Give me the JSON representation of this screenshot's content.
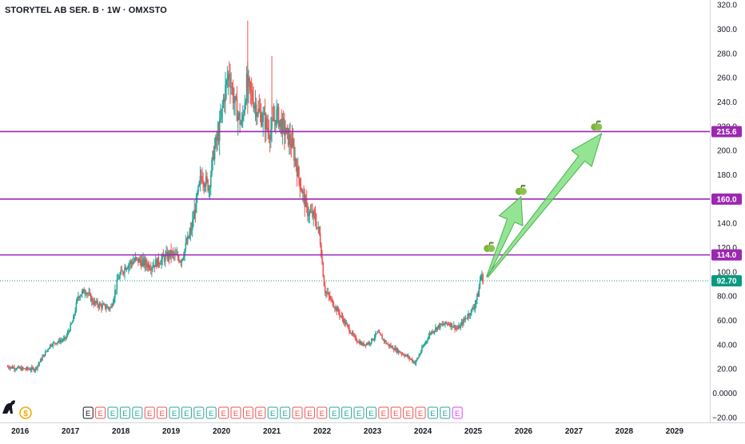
{
  "header": {
    "title": "STORYTEL AB SER. B · 1W · OMXSTO"
  },
  "colors": {
    "up": "#26a69a",
    "down": "#ef5350",
    "level": "#9c27b0",
    "arrow": "#6fdc6f",
    "current": "#089981",
    "grid": "#eef0f3",
    "axis_text": "#131722"
  },
  "icons": {
    "logo": "dinosaur-icon",
    "dividend": "dollar-icon",
    "apple": "apple-icon"
  },
  "chart_data": {
    "type": "candlestick",
    "y_axis": {
      "ticks": [
        "320.0",
        "300.0",
        "280.0",
        "260.0",
        "240.0",
        "220.0",
        "200.0",
        "180.0",
        "160.0",
        "140.0",
        "120.0",
        "100.0",
        "80.00",
        "60.00",
        "40.00",
        "20.00",
        "0.0000",
        "−20.00"
      ],
      "ylim": [
        -24,
        324
      ]
    },
    "x_axis": {
      "ticks": [
        "2016",
        "2017",
        "2018",
        "2019",
        "2020",
        "2021",
        "2022",
        "2023",
        "2024",
        "2025",
        "2026",
        "2027",
        "2028",
        "2029"
      ],
      "xlim": [
        2015.6,
        2029.7
      ]
    },
    "price_path": [
      {
        "x": 2015.75,
        "y": 22
      },
      {
        "x": 2016.05,
        "y": 20
      },
      {
        "x": 2016.3,
        "y": 20
      },
      {
        "x": 2016.45,
        "y": 30
      },
      {
        "x": 2016.6,
        "y": 40
      },
      {
        "x": 2016.9,
        "y": 45
      },
      {
        "x": 2017.05,
        "y": 60
      },
      {
        "x": 2017.15,
        "y": 80
      },
      {
        "x": 2017.3,
        "y": 85
      },
      {
        "x": 2017.45,
        "y": 75
      },
      {
        "x": 2017.6,
        "y": 72
      },
      {
        "x": 2017.8,
        "y": 70
      },
      {
        "x": 2017.95,
        "y": 95
      },
      {
        "x": 2018.1,
        "y": 105
      },
      {
        "x": 2018.3,
        "y": 110
      },
      {
        "x": 2018.6,
        "y": 105
      },
      {
        "x": 2018.8,
        "y": 110
      },
      {
        "x": 2019.0,
        "y": 115
      },
      {
        "x": 2019.2,
        "y": 110
      },
      {
        "x": 2019.4,
        "y": 135
      },
      {
        "x": 2019.6,
        "y": 180
      },
      {
        "x": 2019.75,
        "y": 170
      },
      {
        "x": 2019.85,
        "y": 200
      },
      {
        "x": 2019.95,
        "y": 215
      },
      {
        "x": 2020.05,
        "y": 245
      },
      {
        "x": 2020.15,
        "y": 265
      },
      {
        "x": 2020.25,
        "y": 240
      },
      {
        "x": 2020.4,
        "y": 220
      },
      {
        "x": 2020.5,
        "y": 255
      },
      {
        "x": 2020.6,
        "y": 245
      },
      {
        "x": 2020.75,
        "y": 230
      },
      {
        "x": 2020.85,
        "y": 225
      },
      {
        "x": 2020.95,
        "y": 215
      },
      {
        "x": 2021.1,
        "y": 230
      },
      {
        "x": 2021.2,
        "y": 220
      },
      {
        "x": 2021.4,
        "y": 205
      },
      {
        "x": 2021.55,
        "y": 175
      },
      {
        "x": 2021.7,
        "y": 150
      },
      {
        "x": 2021.85,
        "y": 145
      },
      {
        "x": 2021.95,
        "y": 130
      },
      {
        "x": 2022.05,
        "y": 85
      },
      {
        "x": 2022.2,
        "y": 75
      },
      {
        "x": 2022.35,
        "y": 65
      },
      {
        "x": 2022.5,
        "y": 55
      },
      {
        "x": 2022.65,
        "y": 45
      },
      {
        "x": 2022.8,
        "y": 40
      },
      {
        "x": 2022.95,
        "y": 42
      },
      {
        "x": 2023.1,
        "y": 50
      },
      {
        "x": 2023.3,
        "y": 40
      },
      {
        "x": 2023.5,
        "y": 35
      },
      {
        "x": 2023.7,
        "y": 30
      },
      {
        "x": 2023.85,
        "y": 25
      },
      {
        "x": 2024.0,
        "y": 38
      },
      {
        "x": 2024.15,
        "y": 50
      },
      {
        "x": 2024.3,
        "y": 55
      },
      {
        "x": 2024.5,
        "y": 58
      },
      {
        "x": 2024.7,
        "y": 53
      },
      {
        "x": 2024.85,
        "y": 62
      },
      {
        "x": 2025.0,
        "y": 70
      },
      {
        "x": 2025.1,
        "y": 82
      },
      {
        "x": 2025.15,
        "y": 98
      },
      {
        "x": 2025.2,
        "y": 92.7
      }
    ],
    "levels": [
      {
        "price": 215.6,
        "label": "215.6"
      },
      {
        "price": 160.0,
        "label": "160.0"
      },
      {
        "price": 114.0,
        "label": "114.0"
      }
    ],
    "current_price": {
      "price": 92.7,
      "label": "92.70"
    },
    "arrows": [
      {
        "from": {
          "x": 2025.28,
          "y": 96
        },
        "to": {
          "x": 2025.95,
          "y": 162
        }
      },
      {
        "from": {
          "x": 2025.28,
          "y": 96
        },
        "to": {
          "x": 2027.55,
          "y": 214
        }
      }
    ],
    "markers": [
      {
        "x": 2025.32,
        "y": 120
      },
      {
        "x": 2025.95,
        "y": 167
      },
      {
        "x": 2027.45,
        "y": 220
      }
    ],
    "events": [
      "E",
      "E",
      "E",
      "E",
      "E",
      "E",
      "E",
      "E",
      "E",
      "E",
      "E",
      "E",
      "E",
      "E",
      "E",
      "E",
      "E",
      "E",
      "E",
      "E",
      "E",
      "E",
      "E",
      "E",
      "E",
      "E",
      "E",
      "E",
      "E",
      "E",
      "E"
    ]
  }
}
